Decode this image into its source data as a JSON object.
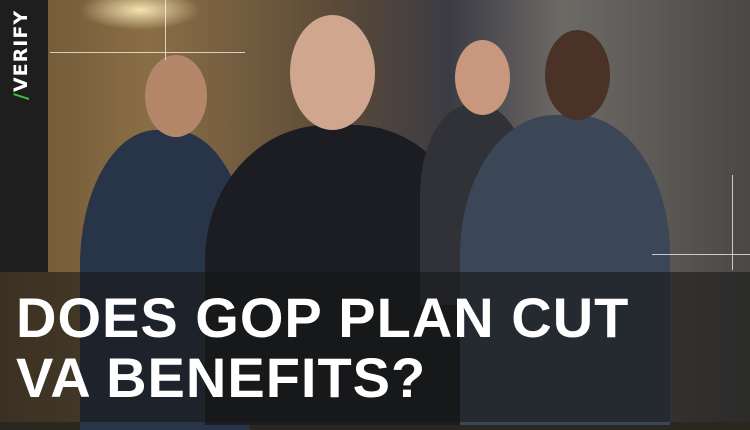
{
  "brand": {
    "logo_text": "VERIFY",
    "accent": "#3ec43a"
  },
  "headline": {
    "line1": "DOES GOP PLAN CUT",
    "line2": "VA BENEFITS?"
  }
}
